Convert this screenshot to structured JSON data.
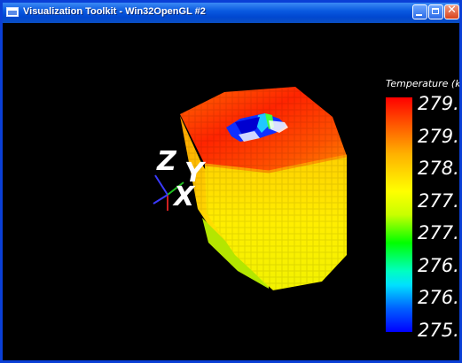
{
  "window": {
    "title": "Visualization Toolkit - Win32OpenGL #2",
    "icons": {
      "app": "vtk-window-icon",
      "minimize": "minimize-icon",
      "maximize": "maximize-icon",
      "close": "close-icon"
    },
    "colors": {
      "titlebar": "#0a5ae0",
      "background": "#000000"
    }
  },
  "axes": {
    "x_label": "X",
    "y_label": "Y",
    "z_label": "Z"
  },
  "scalar_bar": {
    "title": "Temperature (k)",
    "labels": [
      "279.",
      "279.",
      "278.",
      "277.",
      "277.",
      "276.",
      "276.",
      "275."
    ],
    "colormap": [
      "#ff0000",
      "#ffff00",
      "#00ff00",
      "#00ffff",
      "#0000ff"
    ]
  }
}
